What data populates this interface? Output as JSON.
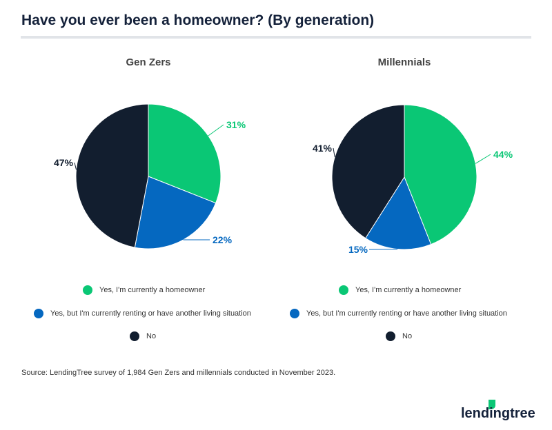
{
  "title": "Have you ever been a homeowner? (By generation)",
  "source": "Source: LendingTree survey of 1,984 Gen Zers and millennials conducted in November 2023.",
  "logo_text": "lendingtree",
  "chart_data": [
    {
      "type": "pie",
      "title": "Gen Zers",
      "categories": [
        "Yes, I'm currently a homeowner",
        "Yes, but I'm currently renting or have another living situation",
        "No"
      ],
      "values": [
        31,
        22,
        47
      ],
      "labels": [
        "31%",
        "22%",
        "47%"
      ],
      "colors": [
        "#0ac775",
        "#0568c0",
        "#121e2f"
      ],
      "legend_position": "bottom"
    },
    {
      "type": "pie",
      "title": "Millennials",
      "categories": [
        "Yes, I'm currently a homeowner",
        "Yes, but I'm currently renting or have another living situation",
        "No"
      ],
      "values": [
        44,
        15,
        41
      ],
      "labels": [
        "44%",
        "15%",
        "41%"
      ],
      "colors": [
        "#0ac775",
        "#0568c0",
        "#121e2f"
      ],
      "legend_position": "bottom"
    }
  ]
}
